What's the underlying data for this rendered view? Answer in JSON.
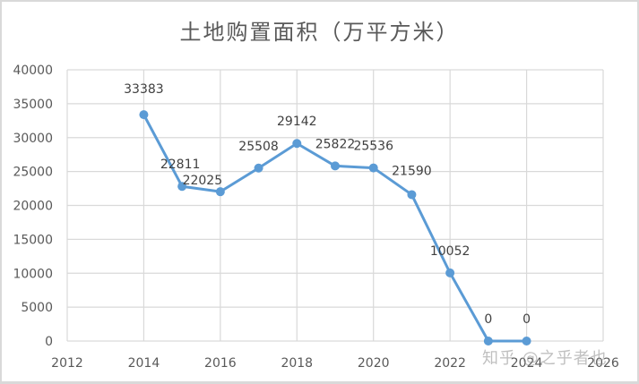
{
  "chart_data": {
    "type": "line",
    "title": "土地购置面积（万平方米）",
    "xlabel": "",
    "ylabel": "",
    "x": [
      2014,
      2015,
      2016,
      2017,
      2018,
      2019,
      2020,
      2021,
      2022,
      2023,
      2024
    ],
    "series": [
      {
        "name": "土地购置面积（万平方米）",
        "values": [
          33383,
          22811,
          22025,
          25508,
          29142,
          25822,
          25536,
          21590,
          10052,
          0,
          0
        ],
        "color": "#5b9bd5"
      }
    ],
    "data_labels": [
      "33383",
      "22811",
      "22025",
      "25508",
      "29142",
      "25822",
      "25536",
      "21590",
      "10052",
      "0",
      "0"
    ],
    "xlim": [
      2012,
      2026
    ],
    "ylim": [
      0,
      40000
    ],
    "x_ticks": [
      "2012",
      "2014",
      "2016",
      "2018",
      "2020",
      "2022",
      "2024",
      "2026"
    ],
    "y_ticks": [
      "0",
      "5000",
      "10000",
      "15000",
      "20000",
      "25000",
      "30000",
      "35000",
      "40000"
    ],
    "grid": true,
    "legend": "none"
  },
  "watermark": "知乎 @之乎者也",
  "colors": {
    "line": "#5b9bd5",
    "grid": "#d9d9d9",
    "text": "#595959",
    "label": "#404040"
  }
}
